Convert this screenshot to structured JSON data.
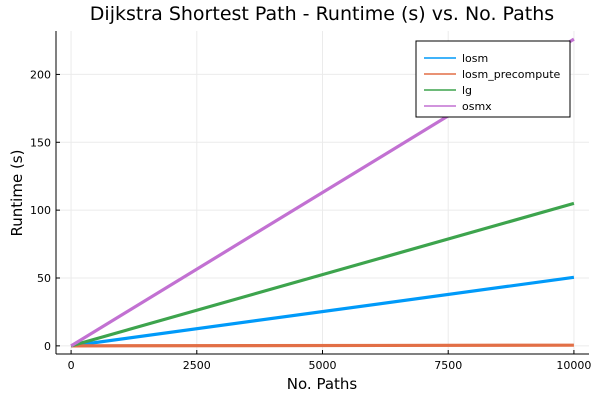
{
  "chart_data": {
    "type": "line",
    "title": "Dijkstra Shortest Path - Runtime (s) vs. No. Paths",
    "xlabel": "No. Paths",
    "ylabel": "Runtime (s)",
    "xlim": [
      -300,
      10300
    ],
    "ylim": [
      -6,
      232
    ],
    "xticks": [
      0,
      2500,
      5000,
      7500,
      10000
    ],
    "xtick_labels": [
      "0",
      "2500",
      "5000",
      "7500",
      "10000"
    ],
    "yticks": [
      0,
      50,
      100,
      150,
      200
    ],
    "ytick_labels": [
      "0",
      "50",
      "100",
      "150",
      "200"
    ],
    "grid": true,
    "legend_position": "top-right",
    "x": [
      0,
      10000
    ],
    "series": [
      {
        "name": "losm",
        "color": "#009af9",
        "values": [
          0,
          50.5
        ]
      },
      {
        "name": "losm_precompute",
        "color": "#e26f46",
        "values": [
          0,
          0.5
        ]
      },
      {
        "name": "lg",
        "color": "#3da44d",
        "values": [
          0,
          105
        ]
      },
      {
        "name": "osmx",
        "color": "#c271d2",
        "values": [
          0,
          226
        ]
      }
    ]
  }
}
